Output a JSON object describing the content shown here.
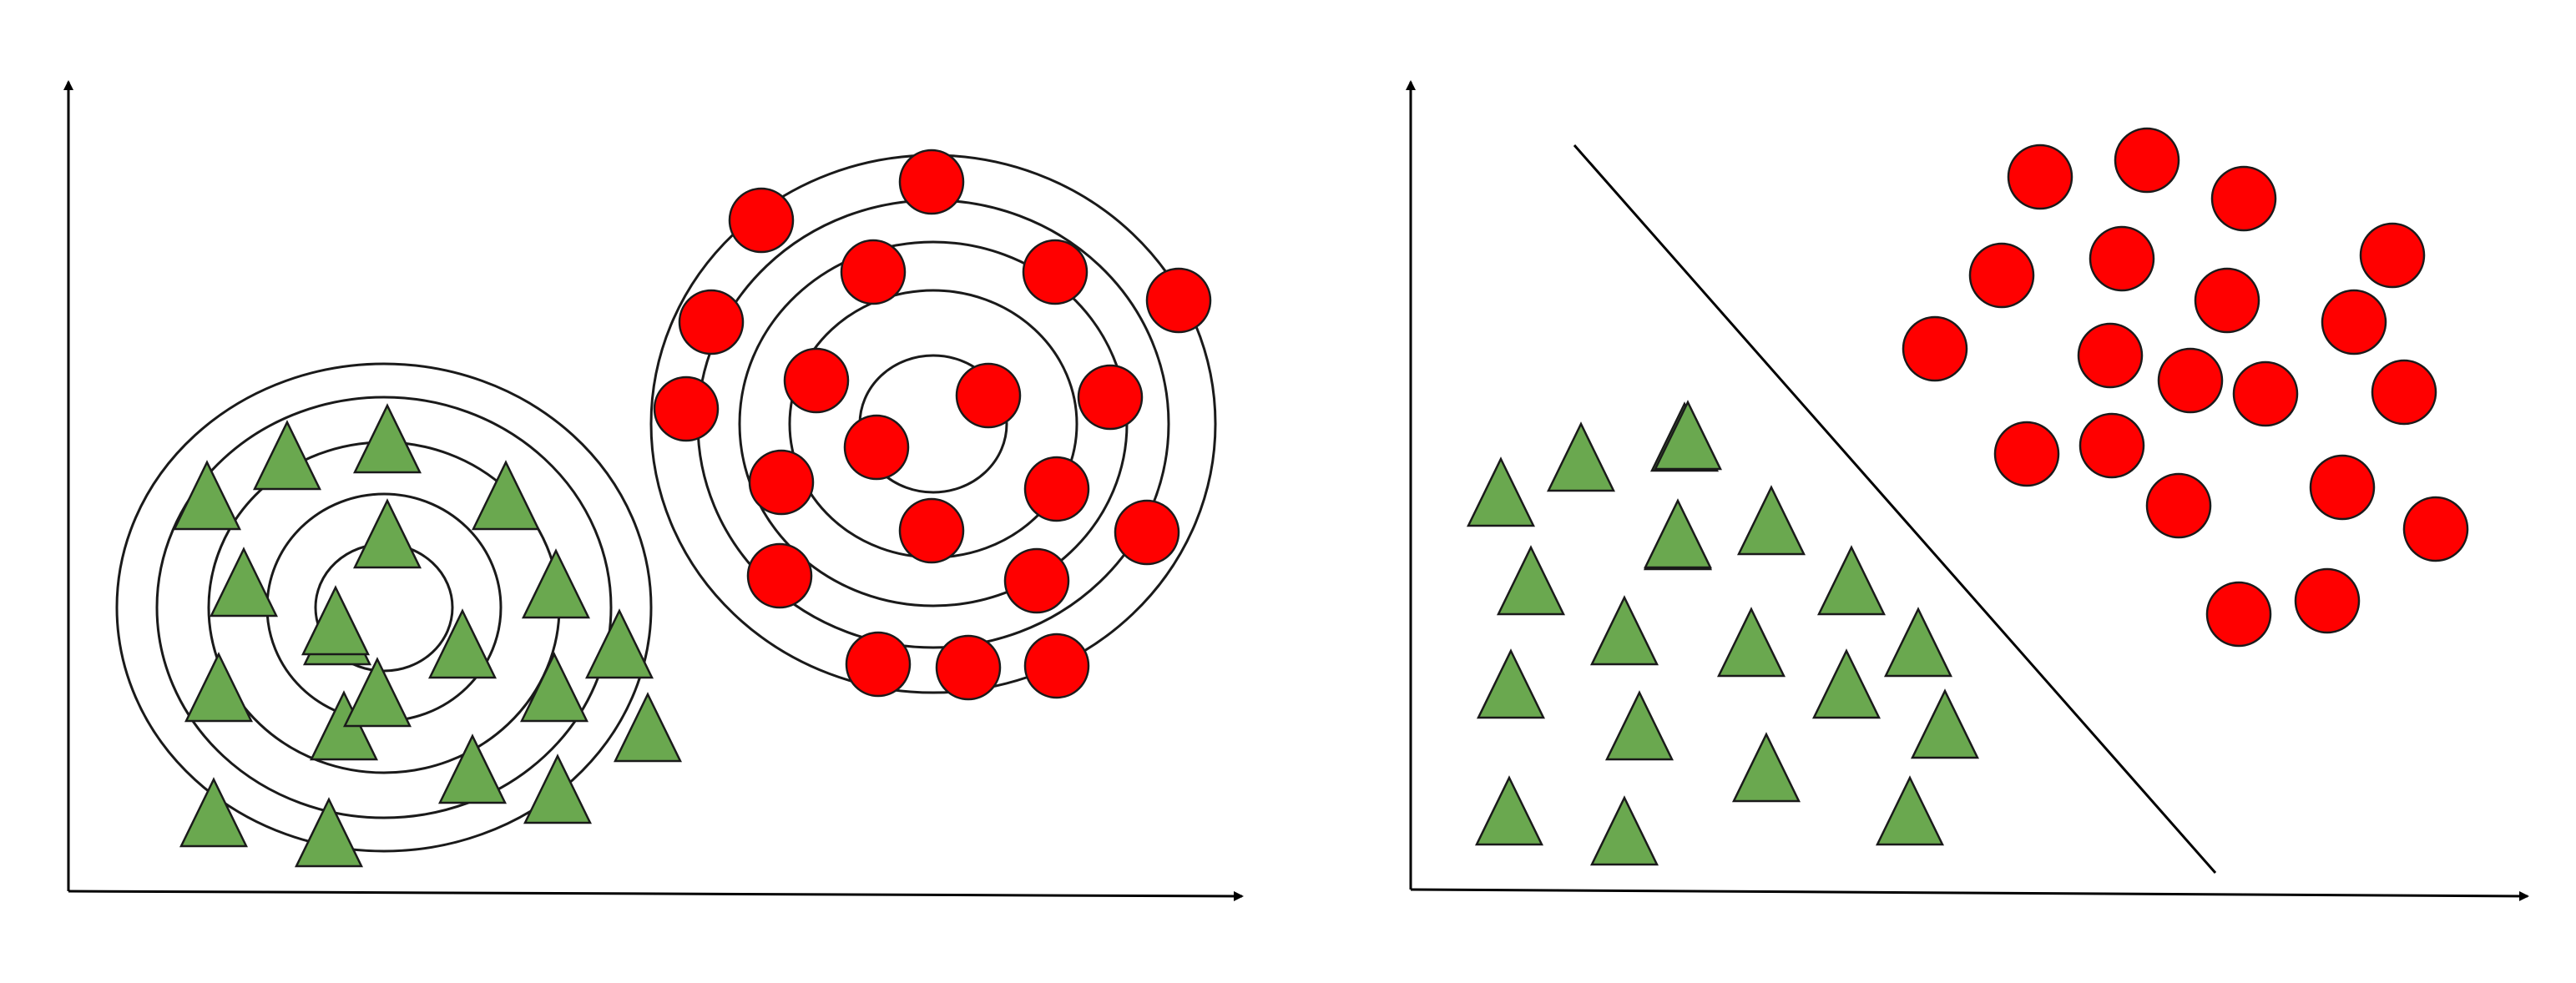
{
  "colors": {
    "triangle_fill": "#6aa84f",
    "circle_fill": "#ff0000",
    "outline": "#1a1a1a",
    "axis": "#000000",
    "background": "#ffffff"
  },
  "panels": [
    {
      "id": "left",
      "description_keys": [
        "contour-rings",
        "triangle-cluster",
        "circle-cluster"
      ],
      "triangle_count": 20,
      "circle_count": 20,
      "ring_sets": 2
    },
    {
      "id": "right",
      "description_keys": [
        "separating-line",
        "triangle-cluster",
        "circle-cluster"
      ],
      "triangle_count": 20,
      "circle_count": 20
    }
  ]
}
